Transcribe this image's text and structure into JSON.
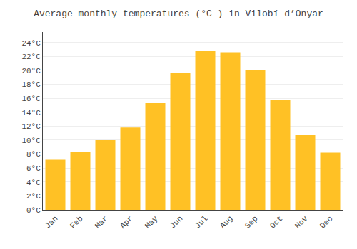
{
  "chart_data": {
    "type": "bar",
    "title": "Average monthly temperatures (°C ) in Vilobí d’Onyar",
    "categories": [
      "Jan",
      "Feb",
      "Mar",
      "Apr",
      "May",
      "Jun",
      "Jul",
      "Aug",
      "Sep",
      "Oct",
      "Nov",
      "Dec"
    ],
    "values": [
      7.2,
      8.3,
      10.0,
      11.8,
      15.3,
      19.6,
      22.8,
      22.6,
      20.1,
      15.7,
      10.7,
      8.2
    ],
    "color": "#FFC125",
    "ylim": [
      0,
      25.5
    ],
    "yticks": [
      {
        "value": 0,
        "label": "0°C"
      },
      {
        "value": 2,
        "label": "2°C"
      },
      {
        "value": 4,
        "label": "4°C"
      },
      {
        "value": 6,
        "label": "6°C"
      },
      {
        "value": 8,
        "label": "8°C"
      },
      {
        "value": 10,
        "label": "10°C"
      },
      {
        "value": 12,
        "label": "12°C"
      },
      {
        "value": 14,
        "label": "14°C"
      },
      {
        "value": 16,
        "label": "16°C"
      },
      {
        "value": 18,
        "label": "18°C"
      },
      {
        "value": 20,
        "label": "20°C"
      },
      {
        "value": 22,
        "label": "22°C"
      },
      {
        "value": 24,
        "label": "24°C"
      }
    ],
    "grid": true
  }
}
